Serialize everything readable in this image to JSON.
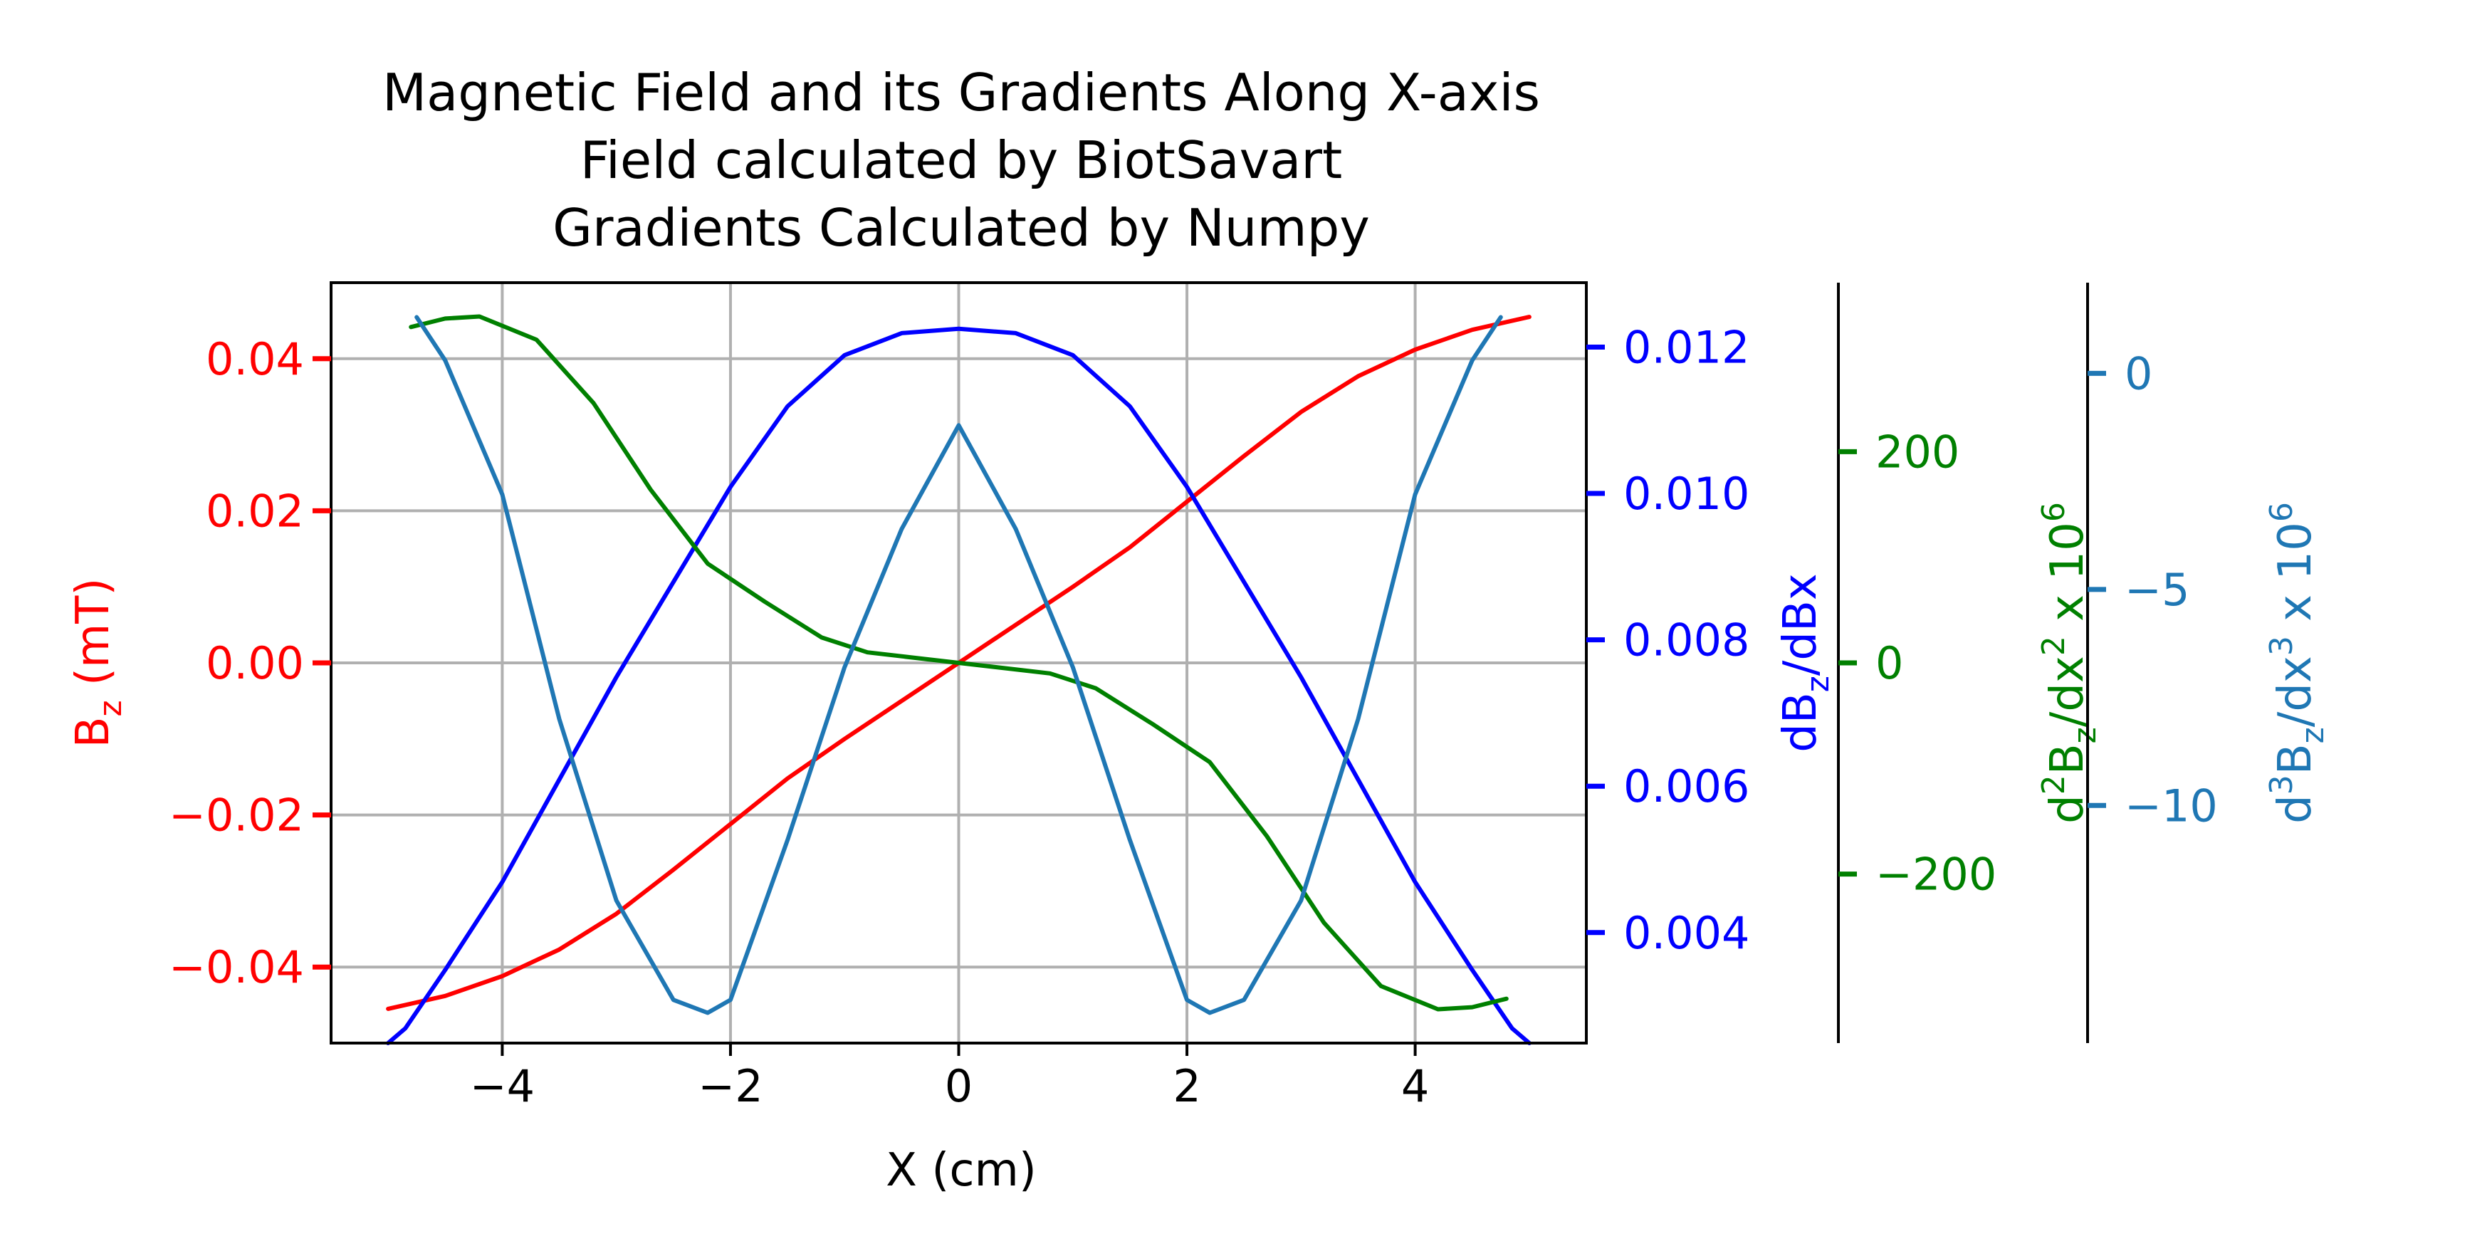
{
  "chart_data": {
    "type": "line",
    "title": [
      "Magnetic Field and its Gradients Along X-axis",
      "Field calculated by BiotSavart",
      "Gradients Calculated by Numpy"
    ],
    "xlabel": "X (cm)",
    "xlim": [
      -5.5,
      5.5
    ],
    "xticks": [
      -4,
      -2,
      0,
      2,
      4
    ],
    "xtick_labels": [
      "−4",
      "−2",
      "0",
      "2",
      "4"
    ],
    "grid": true,
    "axes": [
      {
        "id": "bz",
        "side": "left",
        "label": "B",
        "label_sub": "z",
        "label_tail": " (mT)",
        "color": "#ff0000",
        "ylim": [
          -0.05,
          0.05
        ],
        "ticks": [
          -0.04,
          -0.02,
          0.0,
          0.02,
          0.04
        ],
        "tick_labels": [
          "−0.04",
          "−0.02",
          "0.00",
          "0.02",
          "0.04"
        ]
      },
      {
        "id": "d1",
        "side": "right",
        "label": "dB",
        "label_sub": "z",
        "label_tail": "/dBx",
        "color": "#0000ff",
        "ylim": [
          0.00249,
          0.01288
        ],
        "ticks": [
          0.004,
          0.006,
          0.008,
          0.01,
          0.012
        ],
        "tick_labels": [
          "0.004",
          "0.006",
          "0.008",
          "0.010",
          "0.012"
        ]
      },
      {
        "id": "d2",
        "side": "right",
        "label": "d",
        "label_sup": "2",
        "label_mid": "B",
        "label_sub": "z",
        "label_tail": "/dx",
        "label_sup2": "2",
        "label_tail2": "  x 10",
        "label_sup3": "6",
        "color": "#008000",
        "ylim": [
          -360,
          360
        ],
        "ticks": [
          -200,
          0,
          200
        ],
        "tick_labels": [
          "−200",
          "0",
          "200"
        ]
      },
      {
        "id": "d3",
        "side": "right",
        "label": "d",
        "label_sup": "3",
        "label_mid": "B",
        "label_sub": "z",
        "label_tail": "/dx",
        "label_sup2": "3",
        "label_tail2": "  x 10",
        "label_sup3": "6",
        "color": "#1f77b4",
        "ylim": [
          -15.5,
          2.1
        ],
        "ticks": [
          -10,
          -5,
          0
        ],
        "tick_labels": [
          "−10",
          "−5",
          "0"
        ]
      }
    ],
    "series": [
      {
        "axis": "bz",
        "color": "#ff0000",
        "x": [
          -5,
          -4.5,
          -4,
          -3.5,
          -3,
          -2.5,
          -2,
          -1.5,
          -1,
          -0.5,
          0,
          0.5,
          1,
          1.5,
          2,
          2.5,
          3,
          3.5,
          4,
          4.5,
          5
        ],
        "y": [
          -0.0455,
          -0.0438,
          -0.0412,
          -0.0377,
          -0.033,
          -0.0272,
          -0.0212,
          -0.0152,
          -0.01,
          -0.005,
          0.0,
          0.005,
          0.01,
          0.0152,
          0.0212,
          0.0272,
          0.033,
          0.0377,
          0.0412,
          0.0438,
          0.0455
        ]
      },
      {
        "axis": "d1",
        "color": "#0000ff",
        "x": [
          -5,
          -4.85,
          -4.5,
          -4,
          -3.5,
          -3,
          -2.5,
          -2,
          -1.5,
          -1,
          -0.5,
          0,
          0.5,
          1,
          1.5,
          2,
          2.5,
          3,
          3.5,
          4,
          4.5,
          4.85,
          5
        ],
        "y": [
          0.00249,
          0.00269,
          0.00349,
          0.00469,
          0.00609,
          0.00749,
          0.00879,
          0.01009,
          0.01119,
          0.01189,
          0.01219,
          0.01225,
          0.01219,
          0.01189,
          0.01119,
          0.01009,
          0.00879,
          0.00749,
          0.00609,
          0.00469,
          0.00349,
          0.00269,
          0.00249
        ]
      },
      {
        "axis": "d2",
        "color": "#008000",
        "x": [
          -4.8,
          -4.5,
          -4.2,
          -3.7,
          -3.2,
          -2.7,
          -2.2,
          -1.7,
          -1.2,
          -0.8,
          -0.4,
          0,
          0.4,
          0.8,
          1.2,
          1.7,
          2.2,
          2.7,
          3.2,
          3.7,
          4.2,
          4.5,
          4.8
        ],
        "y": [
          318,
          326,
          328,
          306,
          246,
          164,
          94,
          58,
          24,
          10,
          5,
          0,
          -5,
          -10,
          -24,
          -58,
          -94,
          -164,
          -246,
          -306,
          -328,
          -326,
          -318
        ]
      },
      {
        "axis": "d3",
        "color": "#1f77b4",
        "x": [
          -4.75,
          -4.5,
          -4,
          -3.5,
          -3,
          -2.5,
          -2.2,
          -2,
          -1.5,
          -1,
          -0.5,
          0,
          0.5,
          1,
          1.5,
          2,
          2.2,
          2.5,
          3,
          3.5,
          4,
          4.5,
          4.75
        ],
        "y": [
          1.3,
          0.3,
          -2.8,
          -8.0,
          -12.2,
          -14.5,
          -14.8,
          -14.5,
          -10.8,
          -6.8,
          -3.6,
          -1.2,
          -3.6,
          -6.8,
          -10.8,
          -14.5,
          -14.8,
          -14.5,
          -12.2,
          -8.0,
          -2.8,
          0.3,
          1.3
        ]
      }
    ]
  }
}
